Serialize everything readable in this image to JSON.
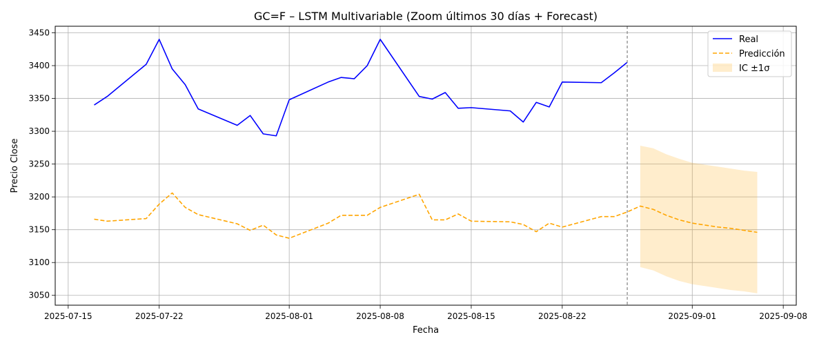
{
  "chart_data": {
    "type": "line",
    "title": "GC=F – LSTM Multivariable (Zoom últimos 30 días + Forecast)",
    "xlabel": "Fecha",
    "ylabel": "Precio Close",
    "xlim": [
      "2025-07-14",
      "2025-09-09"
    ],
    "ylim": [
      3035,
      3460
    ],
    "x_ticks": [
      "2025-07-15",
      "2025-07-22",
      "2025-08-01",
      "2025-08-08",
      "2025-08-15",
      "2025-08-22",
      "2025-09-01",
      "2025-09-08"
    ],
    "y_ticks": [
      3050,
      3100,
      3150,
      3200,
      3250,
      3300,
      3350,
      3400,
      3450
    ],
    "grid": true,
    "legend_position": "top-right",
    "forecast_start": "2025-08-27",
    "series": [
      {
        "name": "Real",
        "color": "#0000ff",
        "style": "solid",
        "points": [
          [
            "2025-07-17",
            3340
          ],
          [
            "2025-07-18",
            3353
          ],
          [
            "2025-07-21",
            3402
          ],
          [
            "2025-07-22",
            3440
          ],
          [
            "2025-07-23",
            3395
          ],
          [
            "2025-07-24",
            3371
          ],
          [
            "2025-07-25",
            3334
          ],
          [
            "2025-07-28",
            3309
          ],
          [
            "2025-07-29",
            3324
          ],
          [
            "2025-07-30",
            3296
          ],
          [
            "2025-07-31",
            3293
          ],
          [
            "2025-08-01",
            3348
          ],
          [
            "2025-08-04",
            3375
          ],
          [
            "2025-08-05",
            3382
          ],
          [
            "2025-08-06",
            3380
          ],
          [
            "2025-08-07",
            3400
          ],
          [
            "2025-08-08",
            3440
          ],
          [
            "2025-08-11",
            3353
          ],
          [
            "2025-08-12",
            3349
          ],
          [
            "2025-08-13",
            3359
          ],
          [
            "2025-08-14",
            3335
          ],
          [
            "2025-08-15",
            3336
          ],
          [
            "2025-08-18",
            3331
          ],
          [
            "2025-08-19",
            3314
          ],
          [
            "2025-08-20",
            3344
          ],
          [
            "2025-08-21",
            3337
          ],
          [
            "2025-08-22",
            3375
          ],
          [
            "2025-08-25",
            3374
          ],
          [
            "2025-08-26",
            3389
          ],
          [
            "2025-08-27",
            3405
          ]
        ]
      },
      {
        "name": "Predicción",
        "color": "#ffa500",
        "style": "dashed",
        "points": [
          [
            "2025-07-17",
            3166
          ],
          [
            "2025-07-18",
            3163
          ],
          [
            "2025-07-21",
            3167
          ],
          [
            "2025-07-22",
            3189
          ],
          [
            "2025-07-23",
            3206
          ],
          [
            "2025-07-24",
            3184
          ],
          [
            "2025-07-25",
            3173
          ],
          [
            "2025-07-28",
            3159
          ],
          [
            "2025-07-29",
            3149
          ],
          [
            "2025-07-30",
            3157
          ],
          [
            "2025-07-31",
            3142
          ],
          [
            "2025-08-01",
            3137
          ],
          [
            "2025-08-04",
            3160
          ],
          [
            "2025-08-05",
            3172
          ],
          [
            "2025-08-06",
            3172
          ],
          [
            "2025-08-07",
            3172
          ],
          [
            "2025-08-08",
            3184
          ],
          [
            "2025-08-11",
            3204
          ],
          [
            "2025-08-12",
            3165
          ],
          [
            "2025-08-13",
            3165
          ],
          [
            "2025-08-14",
            3174
          ],
          [
            "2025-08-15",
            3163
          ],
          [
            "2025-08-18",
            3162
          ],
          [
            "2025-08-19",
            3158
          ],
          [
            "2025-08-20",
            3147
          ],
          [
            "2025-08-21",
            3160
          ],
          [
            "2025-08-22",
            3154
          ],
          [
            "2025-08-25",
            3170
          ],
          [
            "2025-08-26",
            3170
          ],
          [
            "2025-08-27",
            3177
          ],
          [
            "2025-08-28",
            3186
          ],
          [
            "2025-08-29",
            3181
          ],
          [
            "2025-08-30",
            3172
          ],
          [
            "2025-08-31",
            3165
          ],
          [
            "2025-09-01",
            3160
          ],
          [
            "2025-09-02",
            3157
          ],
          [
            "2025-09-03",
            3154
          ],
          [
            "2025-09-04",
            3152
          ],
          [
            "2025-09-05",
            3149
          ],
          [
            "2025-09-06",
            3146
          ]
        ]
      }
    ],
    "band": {
      "name": "IC ±1σ",
      "color": "#ffa500",
      "opacity": 0.2,
      "points": [
        [
          "2025-08-28",
          3093,
          3278
        ],
        [
          "2025-08-29",
          3088,
          3274
        ],
        [
          "2025-08-30",
          3079,
          3265
        ],
        [
          "2025-08-31",
          3072,
          3258
        ],
        [
          "2025-09-01",
          3067,
          3252
        ],
        [
          "2025-09-02",
          3064,
          3249
        ],
        [
          "2025-09-03",
          3061,
          3246
        ],
        [
          "2025-09-04",
          3058,
          3243
        ],
        [
          "2025-09-05",
          3056,
          3240
        ],
        [
          "2025-09-06",
          3053,
          3238
        ]
      ]
    }
  }
}
